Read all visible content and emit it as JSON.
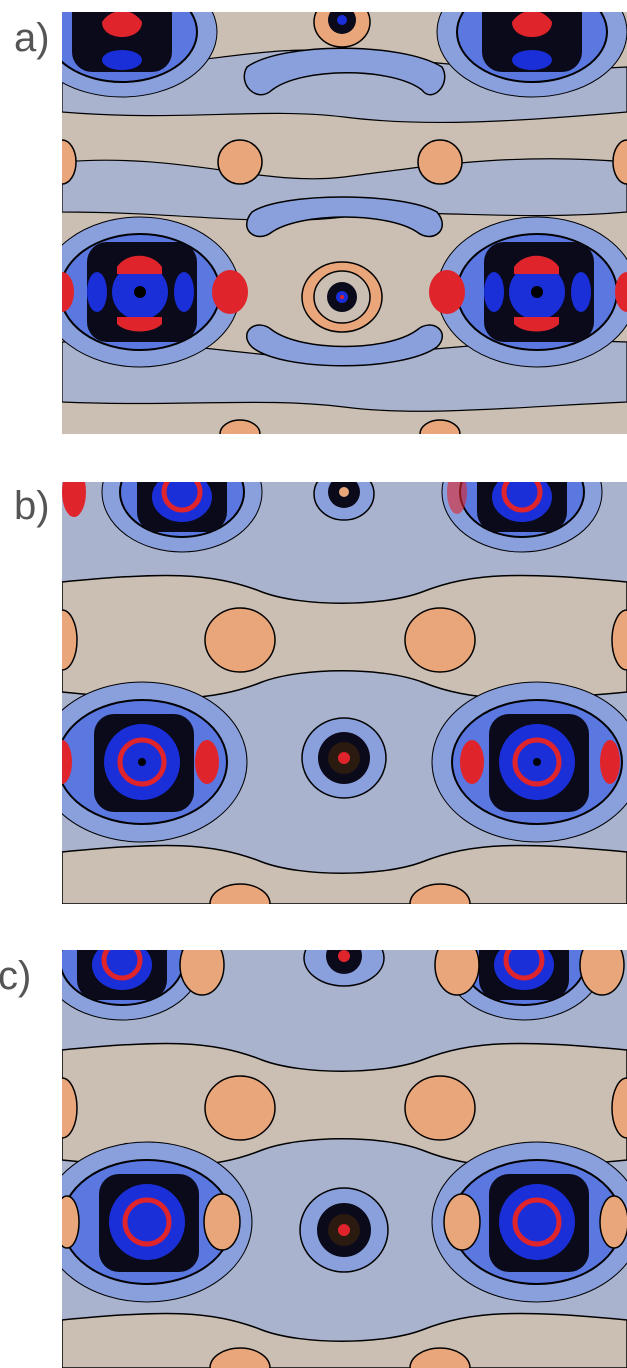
{
  "panels": [
    {
      "label": "a)"
    },
    {
      "label": "b)"
    },
    {
      "label": "c)"
    }
  ],
  "colors": {
    "background_positive": "#cbbfb4",
    "background_negative": "#a9b3ce",
    "light_blue": "#8aa0dd",
    "mid_blue": "#5a78e0",
    "deep_blue": "#1a2fd8",
    "red": "#e0242c",
    "orange": "#e9a67a",
    "contour_line": "#000000"
  }
}
